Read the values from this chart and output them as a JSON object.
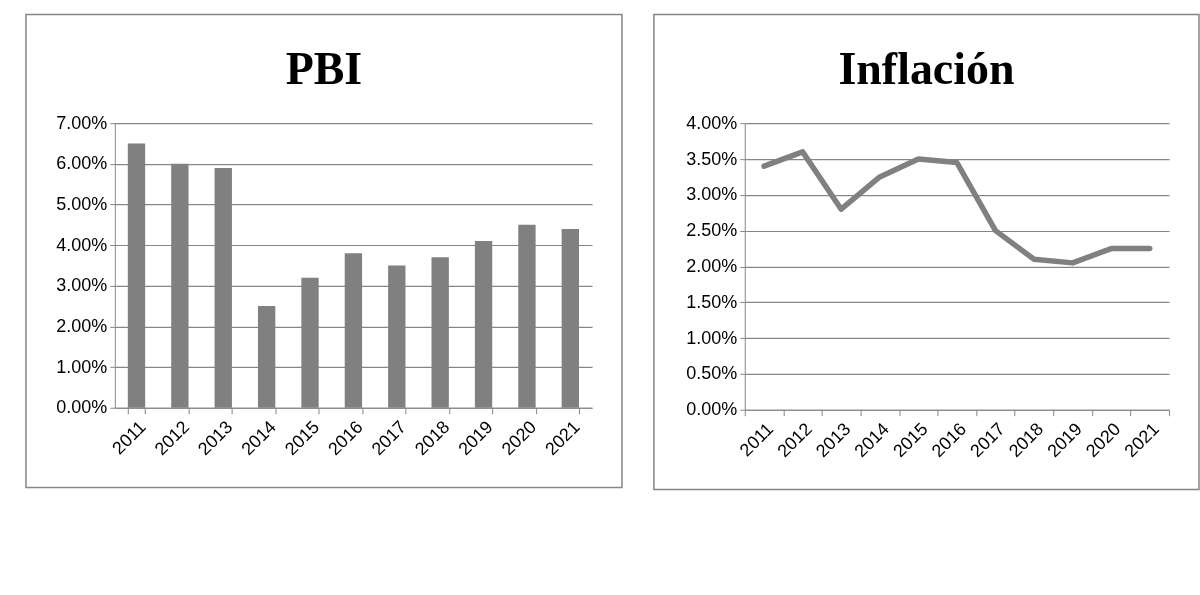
{
  "chart_data": [
    {
      "type": "bar",
      "title": "PBI",
      "categories": [
        "2011",
        "2012",
        "2013",
        "2014",
        "2015",
        "2016",
        "2017",
        "2018",
        "2019",
        "2020",
        "2021"
      ],
      "values": [
        6.5,
        6.0,
        5.9,
        2.5,
        3.2,
        3.8,
        3.5,
        3.7,
        4.1,
        4.5,
        4.4
      ],
      "color": "#808080",
      "ylim": [
        0,
        7
      ],
      "yticks": [
        {
          "value": 0,
          "label": "0.00%"
        },
        {
          "value": 1,
          "label": "1.00%"
        },
        {
          "value": 2,
          "label": "2.00%"
        },
        {
          "value": 3,
          "label": "3.00%"
        },
        {
          "value": 4,
          "label": "4.00%"
        },
        {
          "value": 5,
          "label": "5.00%"
        },
        {
          "value": 6,
          "label": "6.00%"
        },
        {
          "value": 7,
          "label": "7.00%"
        }
      ],
      "grid": "y"
    },
    {
      "type": "line",
      "title": "Inflación",
      "categories": [
        "2011",
        "2012",
        "2013",
        "2014",
        "2015",
        "2016",
        "2017",
        "2018",
        "2019",
        "2020",
        "2021"
      ],
      "values": [
        3.4,
        3.6,
        2.8,
        3.25,
        3.5,
        3.45,
        2.5,
        2.1,
        2.05,
        2.25,
        2.25
      ],
      "color": "#808080",
      "ylim": [
        0,
        4
      ],
      "yticks": [
        {
          "value": 0,
          "label": "0.00%"
        },
        {
          "value": 0.5,
          "label": "0.50%"
        },
        {
          "value": 1,
          "label": "1.00%"
        },
        {
          "value": 1.5,
          "label": "1.50%"
        },
        {
          "value": 2,
          "label": "2.00%"
        },
        {
          "value": 2.5,
          "label": "2.50%"
        },
        {
          "value": 3,
          "label": "3.00%"
        },
        {
          "value": 3.5,
          "label": "3.50%"
        },
        {
          "value": 4,
          "label": "4.00%"
        }
      ],
      "grid": "y",
      "line_style": "solid"
    }
  ]
}
